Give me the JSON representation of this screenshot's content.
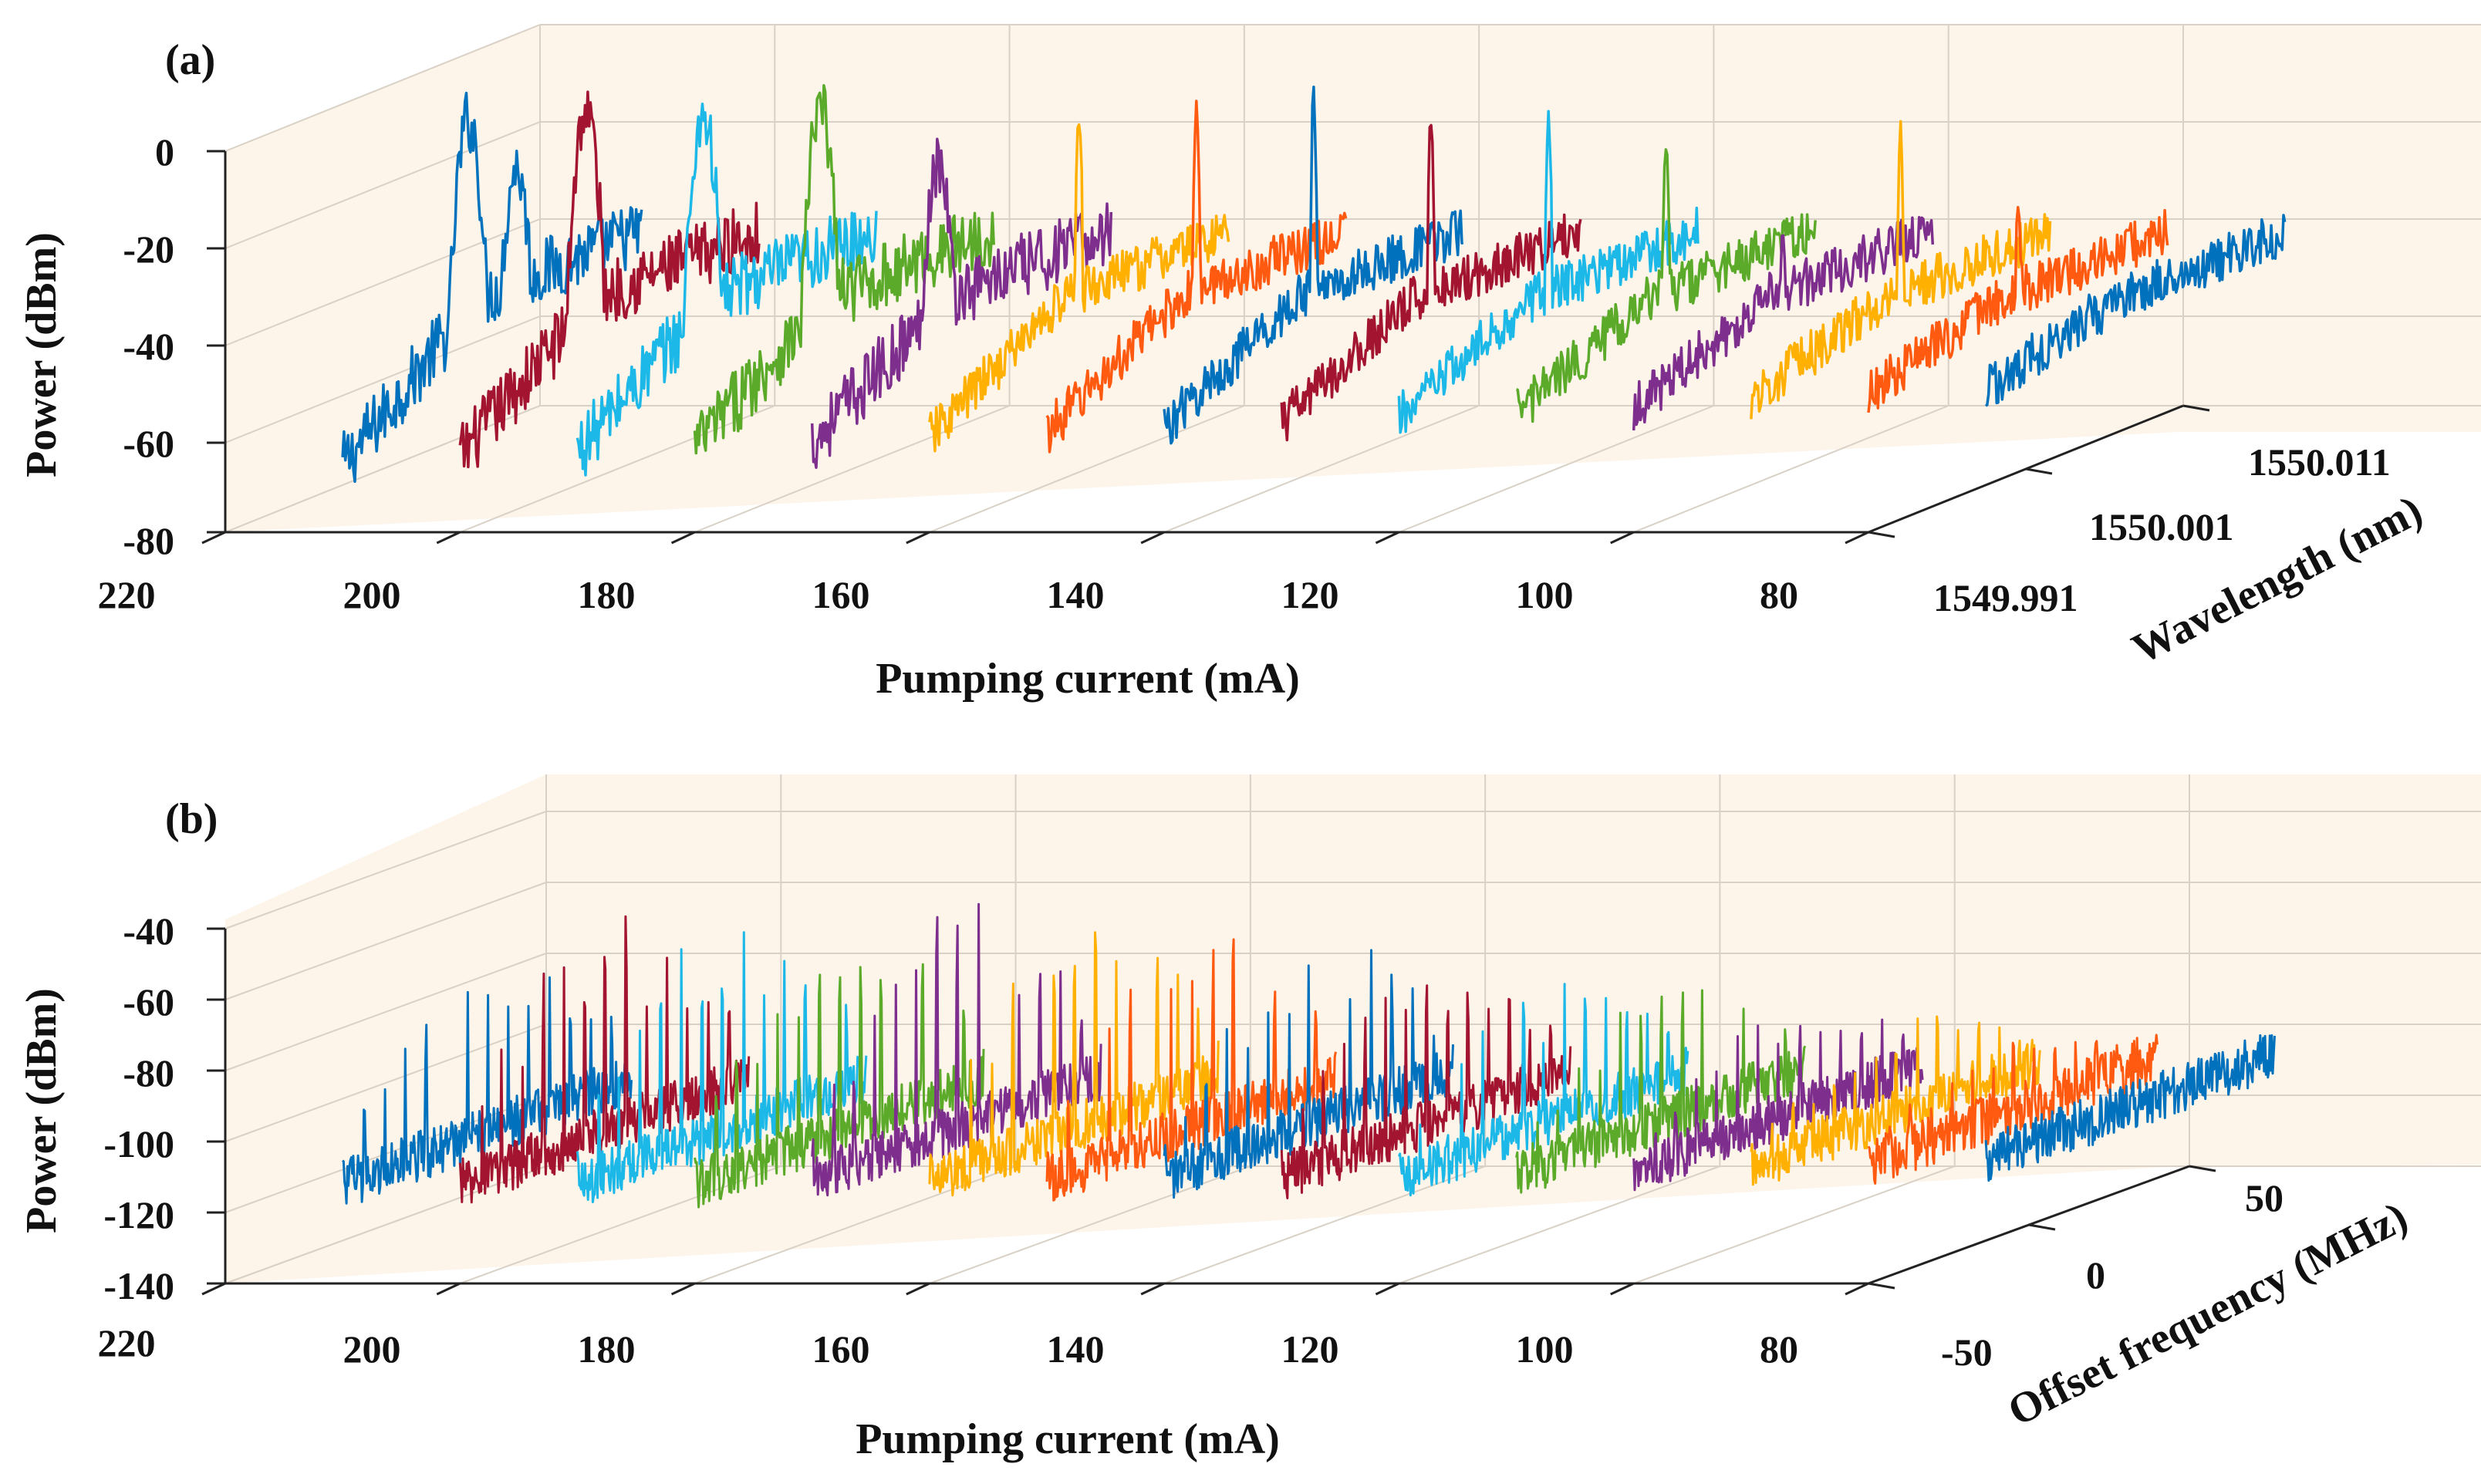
{
  "figure": {
    "colors": [
      "#0072BD",
      "#A2142F",
      "#1CB8E8",
      "#5BAA2A",
      "#7E2F8E",
      "#FFB000",
      "#FF5A10"
    ]
  },
  "chart_data": [
    {
      "type": "line",
      "panel_label": "(a)",
      "title": "",
      "xlabel": "Pumping current  (mA)",
      "ylabel": "Wavelength (nm)",
      "zlabel": "Power  (dBm)",
      "x_ticks": [
        "220",
        "200",
        "180",
        "160",
        "140",
        "120",
        "100",
        "80"
      ],
      "y_ticks": [
        "1549.991",
        "1550.001",
        "1550.011"
      ],
      "z_ticks": [
        "0",
        "-20",
        "-40",
        "-60",
        "-80"
      ],
      "xlim": [
        220,
        80
      ],
      "zlim": [
        -80,
        0
      ],
      "grid": true,
      "series": [
        {
          "current_mA": 210,
          "baseline_dBm": -66,
          "peak_dBm": -4,
          "peak_width": "broad",
          "color_index": 0
        },
        {
          "current_mA": 200,
          "baseline_dBm": -64,
          "peak_dBm": -2,
          "peak_width": "broad",
          "color_index": 1
        },
        {
          "current_mA": 190,
          "baseline_dBm": -63,
          "peak_dBm": -3,
          "peak_width": "broad",
          "color_index": 2
        },
        {
          "current_mA": 180,
          "baseline_dBm": -62,
          "peak_dBm": -2,
          "peak_width": "broad",
          "color_index": 3
        },
        {
          "current_mA": 170,
          "baseline_dBm": -61,
          "peak_dBm": -13,
          "peak_width": "broad",
          "color_index": 4
        },
        {
          "current_mA": 160,
          "baseline_dBm": -60,
          "peak_dBm": -3,
          "peak_width": "narrow",
          "color_index": 5
        },
        {
          "current_mA": 150,
          "baseline_dBm": -59,
          "peak_dBm": -2,
          "peak_width": "narrow",
          "color_index": 6
        },
        {
          "current_mA": 140,
          "baseline_dBm": -58,
          "peak_dBm": -3,
          "peak_width": "narrow",
          "color_index": 0
        },
        {
          "current_mA": 130,
          "baseline_dBm": -57,
          "peak_dBm": -5,
          "peak_width": "narrow",
          "color_index": 1
        },
        {
          "current_mA": 120,
          "baseline_dBm": -56,
          "peak_dBm": -6,
          "peak_width": "narrow",
          "color_index": 2
        },
        {
          "current_mA": 110,
          "baseline_dBm": -55,
          "peak_dBm": -8,
          "peak_width": "narrow",
          "color_index": 3
        },
        {
          "current_mA": 100,
          "baseline_dBm": -54,
          "peak_dBm": -30,
          "peak_width": "narrow",
          "color_index": 4
        },
        {
          "current_mA": 90,
          "baseline_dBm": -52,
          "peak_dBm": -10,
          "peak_width": "narrow",
          "color_index": 5
        },
        {
          "current_mA": 80,
          "baseline_dBm": -51,
          "peak_dBm": -22,
          "peak_width": "narrow",
          "color_index": 6
        },
        {
          "current_mA": 70,
          "baseline_dBm": -50,
          "peak_dBm": -42,
          "peak_width": "none",
          "color_index": 0
        }
      ]
    },
    {
      "type": "line",
      "panel_label": "(b)",
      "title": "",
      "xlabel": "Pumping current  (mA)",
      "ylabel": "Offset frequency  (MHz)",
      "zlabel": "Power  (dBm)",
      "x_ticks": [
        "220",
        "200",
        "180",
        "160",
        "140",
        "120",
        "100",
        "80"
      ],
      "y_ticks": [
        "-50",
        "0",
        "50"
      ],
      "z_ticks": [
        "-40",
        "-60",
        "-80",
        "-100",
        "-120",
        "-140"
      ],
      "xlim": [
        220,
        80
      ],
      "zlim": [
        -140,
        -40
      ],
      "grid": true,
      "series": [
        {
          "current_mA": 210,
          "noise_floor_dBm": -112,
          "max_peak_dBm": -58,
          "color_index": 0
        },
        {
          "current_mA": 200,
          "noise_floor_dBm": -112,
          "max_peak_dBm": -52,
          "color_index": 1
        },
        {
          "current_mA": 190,
          "noise_floor_dBm": -112,
          "max_peak_dBm": -52,
          "color_index": 2
        },
        {
          "current_mA": 180,
          "noise_floor_dBm": -112,
          "max_peak_dBm": -55,
          "color_index": 3
        },
        {
          "current_mA": 170,
          "noise_floor_dBm": -111,
          "max_peak_dBm": -48,
          "color_index": 4
        },
        {
          "current_mA": 160,
          "noise_floor_dBm": -111,
          "max_peak_dBm": -52,
          "color_index": 5
        },
        {
          "current_mA": 150,
          "noise_floor_dBm": -111,
          "max_peak_dBm": -58,
          "color_index": 6
        },
        {
          "current_mA": 140,
          "noise_floor_dBm": -110,
          "max_peak_dBm": -58,
          "color_index": 0
        },
        {
          "current_mA": 130,
          "noise_floor_dBm": -110,
          "max_peak_dBm": -65,
          "color_index": 1
        },
        {
          "current_mA": 120,
          "noise_floor_dBm": -110,
          "max_peak_dBm": -70,
          "color_index": 2
        },
        {
          "current_mA": 110,
          "noise_floor_dBm": -109,
          "max_peak_dBm": -72,
          "color_index": 3
        },
        {
          "current_mA": 100,
          "noise_floor_dBm": -108,
          "max_peak_dBm": -78,
          "color_index": 4
        },
        {
          "current_mA": 90,
          "noise_floor_dBm": -107,
          "max_peak_dBm": -80,
          "color_index": 5
        },
        {
          "current_mA": 80,
          "noise_floor_dBm": -106,
          "max_peak_dBm": -85,
          "color_index": 6
        },
        {
          "current_mA": 70,
          "noise_floor_dBm": -105,
          "max_peak_dBm": -102,
          "color_index": 0
        }
      ]
    }
  ]
}
